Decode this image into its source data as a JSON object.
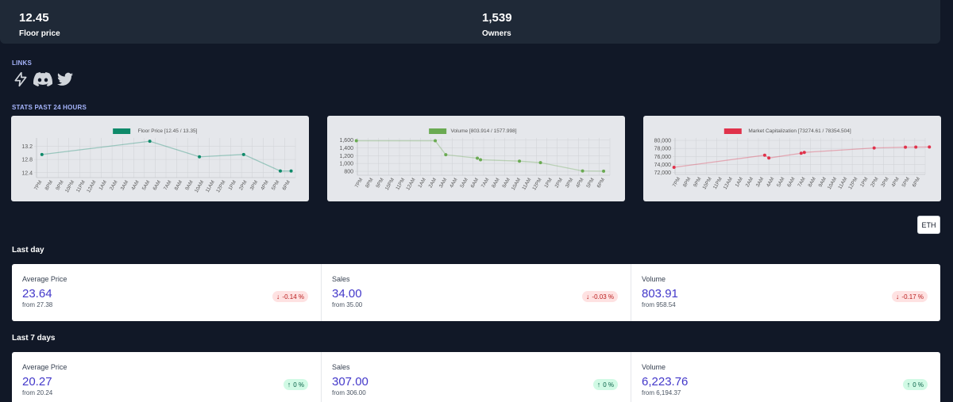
{
  "header": {
    "floor": {
      "value": "12.45",
      "label": "Floor price"
    },
    "owners": {
      "value": "1,539",
      "label": "Owners"
    }
  },
  "links": {
    "label": "LINKS",
    "icons": [
      "lightning-icon",
      "discord-icon",
      "twitter-icon"
    ]
  },
  "stats": {
    "label": "STATS PAST 24 HOURS"
  },
  "currency_button": "ETH",
  "chart_data": [
    {
      "type": "line",
      "legend": "Floor Price [12.45 / 13.35]",
      "color": "#0f8a6a",
      "categories": [
        "7PM",
        "8PM",
        "9PM",
        "10PM",
        "11PM",
        "12AM",
        "1AM",
        "2AM",
        "3AM",
        "4AM",
        "5AM",
        "6AM",
        "7AM",
        "8AM",
        "9AM",
        "10AM",
        "11AM",
        "12PM",
        "1PM",
        "2PM",
        "3PM",
        "4PM",
        "5PM",
        "6PM"
      ],
      "x": [
        0,
        10,
        14.6,
        18.7,
        22.1,
        23.1
      ],
      "y": [
        12.95,
        13.35,
        12.88,
        12.95,
        12.45,
        12.45
      ],
      "ylim": [
        12.25,
        13.45
      ],
      "yticks": [
        "13.2",
        "12.8",
        "12.4"
      ],
      "ytick_values": [
        13.2,
        12.8,
        12.4
      ]
    },
    {
      "type": "line",
      "legend": "Volume [803.914 / 1577.998]",
      "color": "#6aaa52",
      "categories": [
        "7PM",
        "8PM",
        "9PM",
        "10PM",
        "11PM",
        "12AM",
        "1AM",
        "2AM",
        "3AM",
        "4AM",
        "5AM",
        "6AM",
        "7AM",
        "8AM",
        "9AM",
        "10AM",
        "11AM",
        "12PM",
        "1PM",
        "2PM",
        "3PM",
        "4PM",
        "5PM",
        "6PM"
      ],
      "x": [
        -0.6,
        6.9,
        7.9,
        10.9,
        11.2,
        14.9,
        16.9,
        20.9,
        22.9
      ],
      "y": [
        1578,
        1578,
        1223,
        1135,
        1095,
        1060,
        1020,
        808,
        804
      ],
      "ylim": [
        700,
        1650
      ],
      "yticks": [
        "1,600",
        "1,400",
        "1,200",
        "1,000",
        "800"
      ],
      "ytick_values": [
        1600,
        1400,
        1200,
        1000,
        800
      ]
    },
    {
      "type": "line",
      "legend": "Market Capitalization [73274.61 / 78354.504]",
      "color": "#e0324b",
      "categories": [
        "7PM",
        "8PM",
        "9PM",
        "10PM",
        "11PM",
        "12AM",
        "1AM",
        "2AM",
        "3AM",
        "4AM",
        "5AM",
        "6AM",
        "7AM",
        "8AM",
        "9AM",
        "10AM",
        "11AM",
        "12PM",
        "1PM",
        "2PM",
        "3PM",
        "4PM",
        "5PM",
        "6PM"
      ],
      "x": [
        -0.6,
        8.1,
        8.5,
        11.6,
        11.9,
        18.6,
        21.6,
        22.6,
        23.9
      ],
      "y": [
        73275,
        76300,
        75600,
        76800,
        77000,
        78100,
        78300,
        78330,
        78355
      ],
      "ylim": [
        71500,
        80600
      ],
      "yticks": [
        "80,000",
        "78,000",
        "76,000",
        "74,000",
        "72,000"
      ],
      "ytick_values": [
        80000,
        78000,
        76000,
        74000,
        72000
      ]
    }
  ],
  "last_day": {
    "title": "Last day",
    "metrics": [
      {
        "label": "Average Price",
        "value": "23.64",
        "from": "from 27.38",
        "change": "-0.14 %",
        "direction": "down"
      },
      {
        "label": "Sales",
        "value": "34.00",
        "from": "from 35.00",
        "change": "-0.03 %",
        "direction": "down"
      },
      {
        "label": "Volume",
        "value": "803.91",
        "from": "from 958.54",
        "change": "-0.17 %",
        "direction": "down"
      }
    ]
  },
  "last_7_days": {
    "title": "Last 7 days",
    "metrics": [
      {
        "label": "Average Price",
        "value": "20.27",
        "from": "from 20.24",
        "change": "0 %",
        "direction": "up"
      },
      {
        "label": "Sales",
        "value": "307.00",
        "from": "from 306.00",
        "change": "0 %",
        "direction": "up"
      },
      {
        "label": "Volume",
        "value": "6,223.76",
        "from": "from 6,194.37",
        "change": "0 %",
        "direction": "up"
      }
    ]
  }
}
